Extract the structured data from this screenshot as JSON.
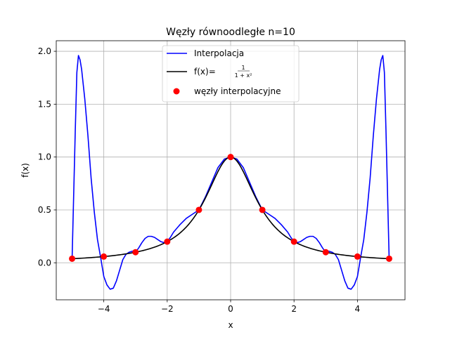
{
  "chart_data": {
    "type": "line",
    "title": "Węzły równoodległe n=10",
    "xlabel": "x",
    "ylabel": "f(x)",
    "xlim": [
      -5.5,
      5.5
    ],
    "ylim": [
      -0.35,
      2.1
    ],
    "xticks": [
      -4,
      -2,
      0,
      2,
      4
    ],
    "xtick_labels": [
      "−4",
      "−2",
      "0",
      "2",
      "4"
    ],
    "yticks": [
      0.0,
      0.5,
      1.0,
      1.5,
      2.0
    ],
    "ytick_labels": [
      "0.0",
      "0.5",
      "1.0",
      "1.5",
      "2.0"
    ],
    "grid": true,
    "legend_position": "top-center",
    "legend": [
      {
        "label": "Interpolacja",
        "color": "#0000ff",
        "kind": "line"
      },
      {
        "label": "f(x)=",
        "label_fraction_num": "1",
        "label_fraction_den": "1 + x²",
        "color": "#000000",
        "kind": "line"
      },
      {
        "label": "węzły interpolacyjne",
        "color": "#ff0000",
        "kind": "scatter"
      }
    ],
    "series": [
      {
        "color": "#0000ff",
        "x": [
          -5.0,
          -4.9,
          -4.85,
          -4.8,
          -4.75,
          -4.7,
          -4.6,
          -4.5,
          -4.4,
          -4.3,
          -4.2,
          -4.1,
          -4.0,
          -3.9,
          -3.8,
          -3.7,
          -3.6,
          -3.5,
          -3.4,
          -3.3,
          -3.2,
          -3.1,
          -3.0,
          -2.9,
          -2.8,
          -2.7,
          -2.6,
          -2.5,
          -2.4,
          -2.3,
          -2.2,
          -2.1,
          -2.0,
          -1.9,
          -1.8,
          -1.6,
          -1.4,
          -1.2,
          -1.0,
          -0.8,
          -0.6,
          -0.4,
          -0.2,
          0.0,
          0.2,
          0.4,
          0.6,
          0.8,
          1.0,
          1.2,
          1.4,
          1.6,
          1.8,
          1.9,
          2.0,
          2.1,
          2.2,
          2.3,
          2.4,
          2.5,
          2.6,
          2.7,
          2.8,
          2.9,
          3.0,
          3.1,
          3.2,
          3.3,
          3.4,
          3.5,
          3.6,
          3.7,
          3.8,
          3.9,
          4.0,
          4.1,
          4.2,
          4.3,
          4.4,
          4.5,
          4.6,
          4.7,
          4.75,
          4.8,
          4.85,
          4.9,
          5.0
        ],
        "y": [
          0.04,
          1.25,
          1.8,
          1.96,
          1.92,
          1.83,
          1.55,
          1.2,
          0.8,
          0.48,
          0.22,
          0.05,
          -0.13,
          -0.21,
          -0.25,
          -0.24,
          -0.17,
          -0.07,
          0.03,
          0.08,
          0.1,
          0.11,
          0.1,
          0.14,
          0.19,
          0.23,
          0.25,
          0.25,
          0.24,
          0.22,
          0.2,
          0.19,
          0.2,
          0.24,
          0.29,
          0.36,
          0.42,
          0.46,
          0.5,
          0.62,
          0.76,
          0.9,
          0.98,
          1.0,
          0.98,
          0.9,
          0.76,
          0.62,
          0.5,
          0.46,
          0.42,
          0.36,
          0.29,
          0.24,
          0.2,
          0.19,
          0.2,
          0.22,
          0.24,
          0.25,
          0.25,
          0.23,
          0.19,
          0.14,
          0.1,
          0.11,
          0.1,
          0.08,
          0.03,
          -0.07,
          -0.17,
          -0.24,
          -0.25,
          -0.21,
          -0.13,
          0.05,
          0.22,
          0.48,
          0.8,
          1.2,
          1.55,
          1.83,
          1.92,
          1.96,
          1.8,
          1.25,
          0.04
        ]
      },
      {
        "color": "#000000",
        "function": "1/(1+x^2)",
        "x_start": -5.0,
        "x_end": 5.0
      }
    ],
    "nodes": {
      "color": "#ff0000",
      "x": [
        -5,
        -4,
        -3,
        -2,
        -1,
        0,
        1,
        2,
        3,
        4,
        5
      ],
      "y": [
        0.0385,
        0.0588,
        0.1,
        0.2,
        0.5,
        1.0,
        0.5,
        0.2,
        0.1,
        0.0588,
        0.0385
      ]
    }
  }
}
